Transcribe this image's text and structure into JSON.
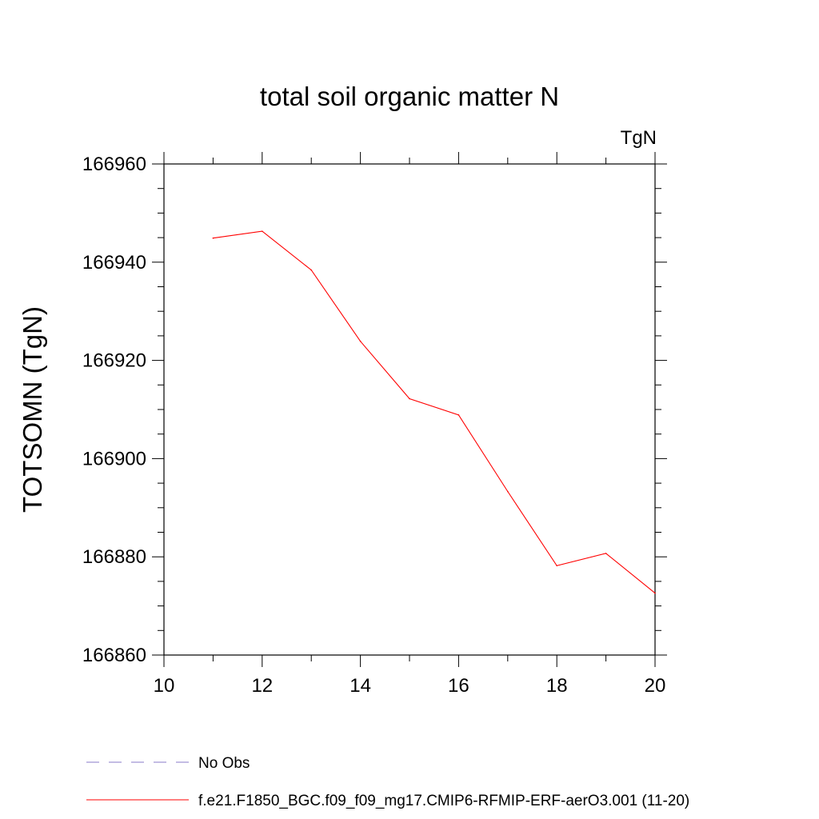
{
  "chart_data": {
    "type": "line",
    "title": "total soil organic matter N",
    "units_label": "TgN",
    "ylabel": "TOTSOMN  (TgN)",
    "xlabel": "",
    "xlim": [
      10,
      20
    ],
    "ylim": [
      166860,
      166960
    ],
    "x_ticks": [
      10,
      12,
      14,
      16,
      18,
      20
    ],
    "y_ticks": [
      166860,
      166880,
      166900,
      166920,
      166940,
      166960
    ],
    "grid": false,
    "series": [
      {
        "name": "f.e21.F1850_BGC.f09_f09_mg17.CMIP6-RFMIP-ERF-aerO3.001 (11-20)",
        "color": "#ff0000",
        "x": [
          11,
          12,
          13,
          14,
          15,
          16,
          17,
          18,
          19,
          20
        ],
        "values": [
          166944.9,
          166946.3,
          166938.4,
          166923.9,
          166912.2,
          166908.9,
          166893.3,
          166878.2,
          166880.7,
          166872.6
        ]
      }
    ],
    "legend": {
      "placement": "bottom-left",
      "items": [
        {
          "label": "No Obs",
          "color": "#8878c8",
          "style": "dashed"
        },
        {
          "label": "f.e21.F1850_BGC.f09_f09_mg17.CMIP6-RFMIP-ERF-aerO3.001 (11-20)",
          "color": "#ff0000",
          "style": "solid"
        }
      ]
    }
  }
}
